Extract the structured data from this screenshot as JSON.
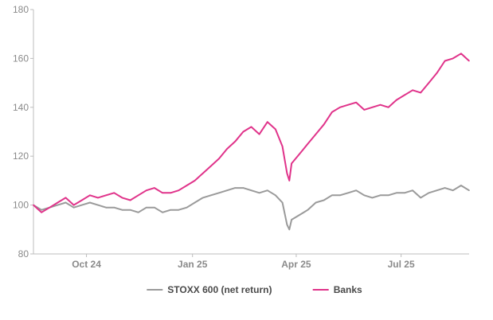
{
  "chart_data": {
    "type": "line",
    "title": "",
    "xlabel": "",
    "ylabel": "",
    "ylim": [
      80,
      180
    ],
    "yticks": [
      "80",
      "100",
      "120",
      "140",
      "160",
      "180"
    ],
    "xticks": [
      "Oct 24",
      "Jan 25",
      "Apr 25",
      "Jul 25"
    ],
    "x_tick_dates": [
      "2024-10-15",
      "2025-01-15",
      "2025-04-15",
      "2025-07-15"
    ],
    "x_range": [
      "2024-08-30",
      "2025-09-12"
    ],
    "grid": false,
    "legend_position": "bottom",
    "series": [
      {
        "name": "STOXX 600 (net return)",
        "color": "#9a9a9a",
        "points": [
          [
            "2024-08-30",
            100
          ],
          [
            "2024-09-06",
            98
          ],
          [
            "2024-09-13",
            99
          ],
          [
            "2024-09-20",
            100
          ],
          [
            "2024-09-27",
            101
          ],
          [
            "2024-10-04",
            99
          ],
          [
            "2024-10-11",
            100
          ],
          [
            "2024-10-18",
            101
          ],
          [
            "2024-10-25",
            100
          ],
          [
            "2024-11-01",
            99
          ],
          [
            "2024-11-08",
            99
          ],
          [
            "2024-11-15",
            98
          ],
          [
            "2024-11-22",
            98
          ],
          [
            "2024-11-29",
            97
          ],
          [
            "2024-12-06",
            99
          ],
          [
            "2024-12-13",
            99
          ],
          [
            "2024-12-20",
            97
          ],
          [
            "2024-12-27",
            98
          ],
          [
            "2025-01-03",
            98
          ],
          [
            "2025-01-10",
            99
          ],
          [
            "2025-01-17",
            101
          ],
          [
            "2025-01-24",
            103
          ],
          [
            "2025-01-31",
            104
          ],
          [
            "2025-02-07",
            105
          ],
          [
            "2025-02-14",
            106
          ],
          [
            "2025-02-21",
            107
          ],
          [
            "2025-02-28",
            107
          ],
          [
            "2025-03-07",
            106
          ],
          [
            "2025-03-14",
            105
          ],
          [
            "2025-03-21",
            106
          ],
          [
            "2025-03-28",
            104
          ],
          [
            "2025-04-03",
            101
          ],
          [
            "2025-04-07",
            92
          ],
          [
            "2025-04-09",
            90
          ],
          [
            "2025-04-11",
            94
          ],
          [
            "2025-04-18",
            96
          ],
          [
            "2025-04-25",
            98
          ],
          [
            "2025-05-02",
            101
          ],
          [
            "2025-05-09",
            102
          ],
          [
            "2025-05-16",
            104
          ],
          [
            "2025-05-23",
            104
          ],
          [
            "2025-05-30",
            105
          ],
          [
            "2025-06-06",
            106
          ],
          [
            "2025-06-13",
            104
          ],
          [
            "2025-06-20",
            103
          ],
          [
            "2025-06-27",
            104
          ],
          [
            "2025-07-04",
            104
          ],
          [
            "2025-07-11",
            105
          ],
          [
            "2025-07-18",
            105
          ],
          [
            "2025-07-25",
            106
          ],
          [
            "2025-08-01",
            103
          ],
          [
            "2025-08-08",
            105
          ],
          [
            "2025-08-15",
            106
          ],
          [
            "2025-08-22",
            107
          ],
          [
            "2025-08-29",
            106
          ],
          [
            "2025-09-05",
            108
          ],
          [
            "2025-09-12",
            106
          ]
        ]
      },
      {
        "name": "Banks",
        "color": "#e0338a",
        "points": [
          [
            "2024-08-30",
            100
          ],
          [
            "2024-09-06",
            97
          ],
          [
            "2024-09-13",
            99
          ],
          [
            "2024-09-20",
            101
          ],
          [
            "2024-09-27",
            103
          ],
          [
            "2024-10-04",
            100
          ],
          [
            "2024-10-11",
            102
          ],
          [
            "2024-10-18",
            104
          ],
          [
            "2024-10-25",
            103
          ],
          [
            "2024-11-01",
            104
          ],
          [
            "2024-11-08",
            105
          ],
          [
            "2024-11-15",
            103
          ],
          [
            "2024-11-22",
            102
          ],
          [
            "2024-11-29",
            104
          ],
          [
            "2024-12-06",
            106
          ],
          [
            "2024-12-13",
            107
          ],
          [
            "2024-12-20",
            105
          ],
          [
            "2024-12-27",
            105
          ],
          [
            "2025-01-03",
            106
          ],
          [
            "2025-01-10",
            108
          ],
          [
            "2025-01-17",
            110
          ],
          [
            "2025-01-24",
            113
          ],
          [
            "2025-01-31",
            116
          ],
          [
            "2025-02-07",
            119
          ],
          [
            "2025-02-14",
            123
          ],
          [
            "2025-02-21",
            126
          ],
          [
            "2025-02-28",
            130
          ],
          [
            "2025-03-07",
            132
          ],
          [
            "2025-03-14",
            129
          ],
          [
            "2025-03-21",
            134
          ],
          [
            "2025-03-28",
            131
          ],
          [
            "2025-04-03",
            124
          ],
          [
            "2025-04-07",
            113
          ],
          [
            "2025-04-09",
            110
          ],
          [
            "2025-04-11",
            117
          ],
          [
            "2025-04-18",
            121
          ],
          [
            "2025-04-25",
            125
          ],
          [
            "2025-05-02",
            129
          ],
          [
            "2025-05-09",
            133
          ],
          [
            "2025-05-16",
            138
          ],
          [
            "2025-05-23",
            140
          ],
          [
            "2025-05-30",
            141
          ],
          [
            "2025-06-06",
            142
          ],
          [
            "2025-06-13",
            139
          ],
          [
            "2025-06-20",
            140
          ],
          [
            "2025-06-27",
            141
          ],
          [
            "2025-07-04",
            140
          ],
          [
            "2025-07-11",
            143
          ],
          [
            "2025-07-18",
            145
          ],
          [
            "2025-07-25",
            147
          ],
          [
            "2025-08-01",
            146
          ],
          [
            "2025-08-08",
            150
          ],
          [
            "2025-08-15",
            154
          ],
          [
            "2025-08-22",
            159
          ],
          [
            "2025-08-29",
            160
          ],
          [
            "2025-09-05",
            162
          ],
          [
            "2025-09-12",
            159
          ]
        ]
      }
    ]
  }
}
